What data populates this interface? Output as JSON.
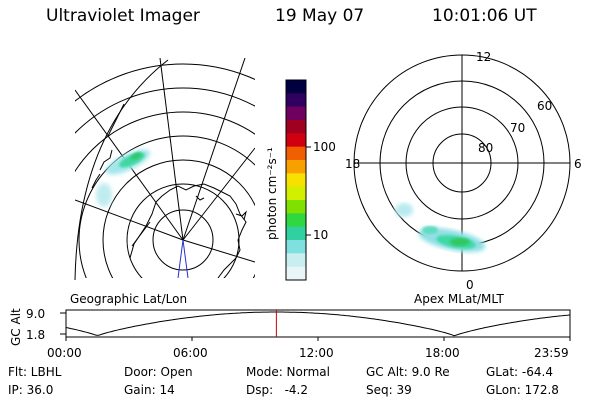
{
  "header": {
    "instrument": "Ultraviolet Imager",
    "date": "19 May 07",
    "time": "10:01:06 UT"
  },
  "left_panel": {
    "label": "Geographic Lat/Lon"
  },
  "right_panel": {
    "label": "Apex MLat/MLT",
    "mlt_labels": [
      "12",
      "18",
      "6",
      "0"
    ],
    "lat_labels": [
      "60",
      "70",
      "80"
    ]
  },
  "colorbar": {
    "unit_label": "photon cm⁻²s⁻¹",
    "ticks": [
      "100",
      "10"
    ],
    "colors": [
      "#000040",
      "#300060",
      "#700060",
      "#a00020",
      "#d00010",
      "#f06000",
      "#f8a000",
      "#f8e000",
      "#d0f000",
      "#80e000",
      "#30d840",
      "#30d0a0",
      "#80e0e0",
      "#c8eef0",
      "#e8f6f8"
    ]
  },
  "timeline": {
    "ylabel": "GC Alt",
    "y_top": "9.0",
    "y_bottom": "1.8",
    "x_ticks": [
      "00:00",
      "06:00",
      "12:00",
      "18:00",
      "23:59"
    ],
    "marker_time_hours": 10.018,
    "marker_color": "#cc0000"
  },
  "info": {
    "row1": [
      "Flt: LBHL",
      "Door: Open",
      "Mode: Normal",
      "GC Alt: 9.0 Re",
      "GLat: -64.4"
    ],
    "row2": [
      "IP: 36.0",
      "Gain: 14",
      "Dsp:   -4.2",
      "Seq: 39",
      "GLon: 172.8"
    ]
  }
}
